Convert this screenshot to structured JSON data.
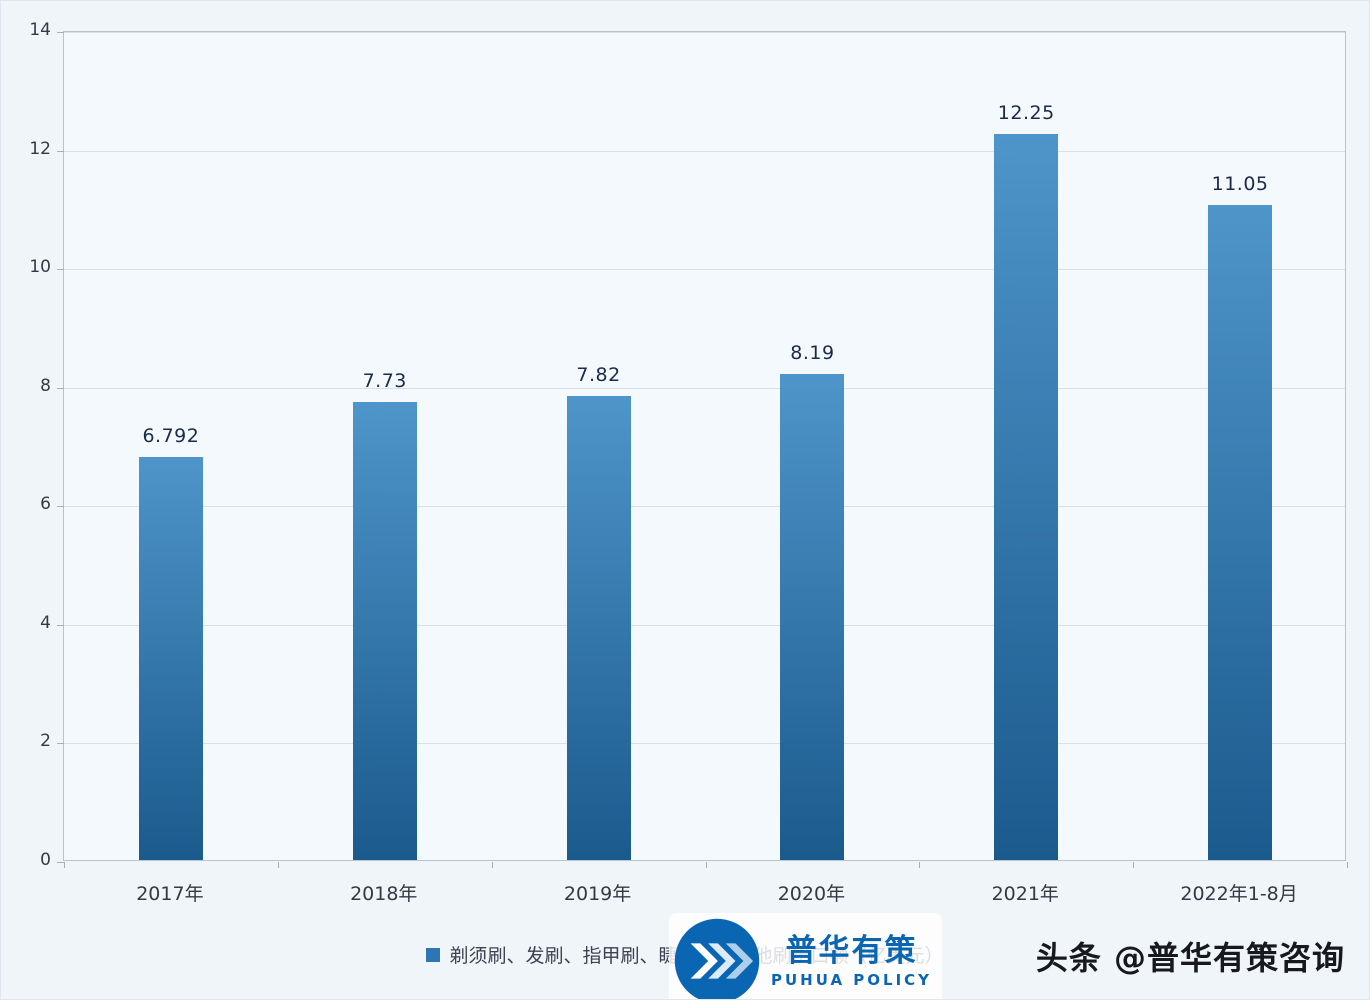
{
  "chart_data": {
    "type": "bar",
    "categories": [
      "2017年",
      "2018年",
      "2019年",
      "2020年",
      "2021年",
      "2022年1-8月"
    ],
    "values": [
      6.792,
      7.73,
      7.82,
      8.19,
      12.25,
      11.05
    ],
    "value_labels": [
      "6.792",
      "7.73",
      "7.82",
      "8.19",
      "12.25",
      "11.05"
    ],
    "title": "",
    "xlabel": "",
    "ylabel": "",
    "ylim": [
      0,
      14
    ],
    "yticks": [
      0,
      2,
      4,
      6,
      8,
      10,
      12,
      14
    ],
    "grid": true,
    "legend": {
      "label": "剃须刷、发刷、指甲刷、睫毛刷及其他刷出口额（亿美元）",
      "marker_color": "#2e75b6",
      "position": "bottom"
    },
    "colors": {
      "bar_top": "#4e95ca",
      "bar_bottom": "#1b5a8d",
      "gridline": "#d7e0e8",
      "plot_border": "#b7c3ce"
    }
  },
  "watermark": {
    "brand_cn": "普华有策",
    "brand_en": "PUHUA POLICY",
    "brand_color": "#0a66b2"
  },
  "footer": {
    "credit": "头条 @普华有策咨询"
  }
}
